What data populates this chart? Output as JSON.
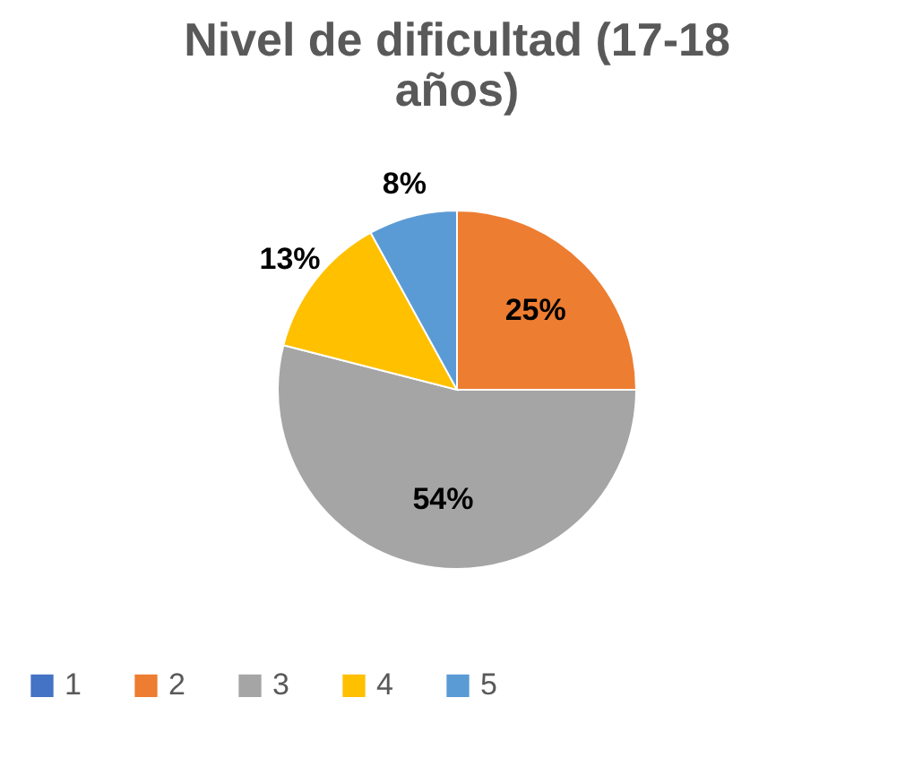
{
  "chart_data": {
    "type": "pie",
    "title": "Nivel de dificultad (17-18 años)",
    "categories": [
      "1",
      "2",
      "3",
      "4",
      "5"
    ],
    "values": [
      0,
      25,
      54,
      13,
      8
    ],
    "colors": [
      "#4472c4",
      "#ed7d31",
      "#a5a5a5",
      "#ffc000",
      "#5b9bd5"
    ],
    "value_labels": [
      null,
      "25%",
      "54%",
      "13%",
      "8%"
    ],
    "legend": "bottom"
  }
}
